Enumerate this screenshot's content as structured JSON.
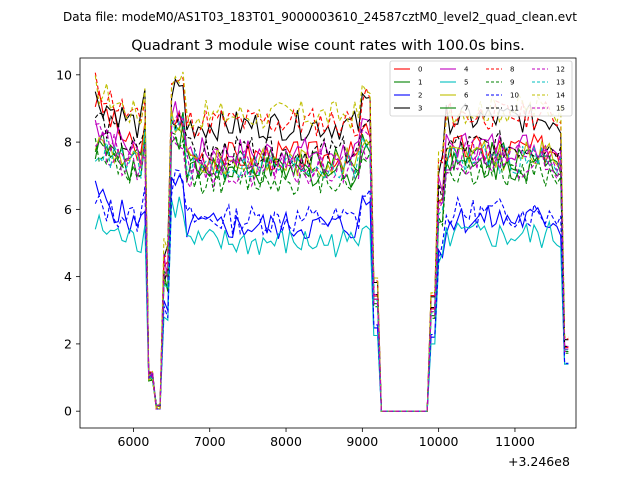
{
  "figure": {
    "suptitle": "Data file: modeM0/AS1T03_183T01_9000003610_24587cztM0_level2_quad_clean.evt",
    "title": "Quadrant 3 module wise count rates with 100.0s bins.",
    "x_offset_label": "+3.246e8"
  },
  "chart_data": {
    "type": "line",
    "title": "Quadrant 3 module wise count rates with 100.0s bins.",
    "xlabel": "",
    "ylabel": "",
    "x_offset": "+3.246e8",
    "xlim": [
      5300,
      11800
    ],
    "ylim": [
      -0.5,
      10.5
    ],
    "xticks": [
      6000,
      7000,
      8000,
      9000,
      10000,
      11000
    ],
    "yticks": [
      0,
      2,
      4,
      6,
      8,
      10
    ],
    "legend": {
      "placement": "top-right",
      "columns": 4
    },
    "series": [
      {
        "name": "0",
        "color": "#ff0000",
        "style": "solid",
        "base": 7.6,
        "start": 9.3
      },
      {
        "name": "1",
        "color": "#008000",
        "style": "solid",
        "base": 7.4,
        "start": 7.9
      },
      {
        "name": "2",
        "color": "#0000ff",
        "style": "solid",
        "base": 5.5,
        "start": 6.5
      },
      {
        "name": "3",
        "color": "#000000",
        "style": "solid",
        "base": 8.5,
        "start": 9.3
      },
      {
        "name": "4",
        "color": "#bf00bf",
        "style": "solid",
        "base": 7.7,
        "start": 8.6
      },
      {
        "name": "5",
        "color": "#00bfbf",
        "style": "solid",
        "base": 5.0,
        "start": 5.5
      },
      {
        "name": "6",
        "color": "#bfbf00",
        "style": "solid",
        "base": 7.4,
        "start": 8.0
      },
      {
        "name": "7",
        "color": "#008000",
        "style": "solid",
        "base": 7.1,
        "start": 8.1
      },
      {
        "name": "8",
        "color": "#ff0000",
        "style": "dashed",
        "base": 8.6,
        "start": 9.7
      },
      {
        "name": "9",
        "color": "#008000",
        "style": "dashed",
        "base": 6.9,
        "start": 7.9
      },
      {
        "name": "10",
        "color": "#0000ff",
        "style": "dashed",
        "base": 5.7,
        "start": 6.1
      },
      {
        "name": "11",
        "color": "#000000",
        "style": "dashed",
        "base": 7.7,
        "start": 8.8
      },
      {
        "name": "12",
        "color": "#bf00bf",
        "style": "dashed",
        "base": 7.1,
        "start": 8.1
      },
      {
        "name": "13",
        "color": "#00bfbf",
        "style": "dashed",
        "base": 7.3,
        "start": 7.8
      },
      {
        "name": "14",
        "color": "#bfbf00",
        "style": "dashed",
        "base": 8.8,
        "start": 9.6
      },
      {
        "name": "15",
        "color": "#bf00bf",
        "style": "dashed",
        "base": 7.4,
        "start": 8.3
      }
    ],
    "segments": [
      {
        "x_start": 5500,
        "x_end": 6200,
        "level": "full"
      },
      {
        "x_start": 6200,
        "x_end": 6250,
        "level": "drop"
      },
      {
        "x_start": 6250,
        "x_end": 6350,
        "level": "near_zero"
      },
      {
        "x_start": 6350,
        "x_end": 6550,
        "level": "rise"
      },
      {
        "x_start": 6550,
        "x_end": 9100,
        "level": "full"
      },
      {
        "x_start": 9100,
        "x_end": 9300,
        "level": "drop"
      },
      {
        "x_start": 9300,
        "x_end": 9900,
        "level": "zero"
      },
      {
        "x_start": 9900,
        "x_end": 10100,
        "level": "rise"
      },
      {
        "x_start": 10100,
        "x_end": 11600,
        "level": "full"
      },
      {
        "x_start": 11600,
        "x_end": 11700,
        "level": "drop"
      }
    ]
  }
}
